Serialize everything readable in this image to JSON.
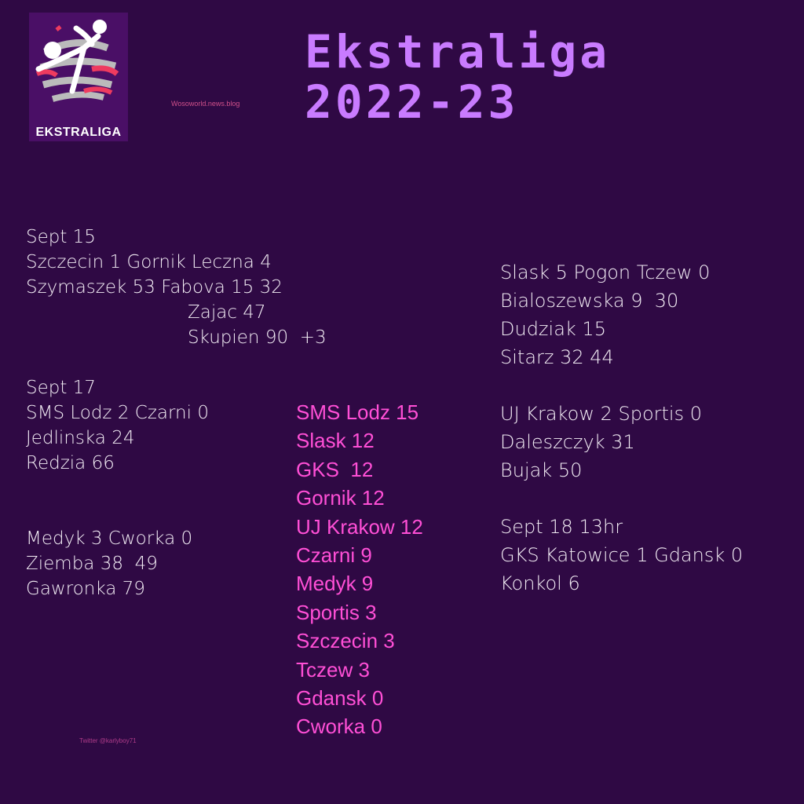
{
  "logo": {
    "text": "EKSTRALIGA"
  },
  "blog": "Wosoworld.news.blog",
  "title": [
    "Ekstraliga",
    "2022-23"
  ],
  "twitter": "Twitter @karlyboy71",
  "colors": {
    "background": "#2f0944",
    "title": "#c97bff",
    "standings": "#ff4fd6",
    "text": "#f2ecf4"
  },
  "left": {
    "sept15": {
      "date": "Sept 15",
      "match": "Szczecin 1 Gornik Leczna 4",
      "scorers": [
        "Szymaszek 53 Fabova 15 32",
        "Zajac 47",
        "Skupien 90  +3"
      ]
    },
    "sept17": {
      "date": "Sept 17",
      "match": "SMS Lodz 2 Czarni 0",
      "scorers": [
        "Jedlinska 24",
        "Redzia 66"
      ]
    },
    "medyk": {
      "match": "Medyk 3 Cworka 0",
      "scorers": [
        "Ziemba 38  49",
        "Gawronka 79"
      ]
    }
  },
  "right": {
    "slask": {
      "match": "Slask 5 Pogon Tczew 0",
      "scorers": [
        "Bialoszewska 9  30",
        "Dudziak 15",
        "Sitarz 32 44"
      ]
    },
    "uj": {
      "match": "UJ Krakow 2 Sportis 0",
      "scorers": [
        "Daleszczyk 31",
        "Bujak 50"
      ]
    },
    "sept18": {
      "date": "Sept 18 13hr",
      "match": "GKS Katowice 1 Gdansk 0",
      "scorers": [
        "Konkol 6"
      ]
    }
  },
  "standings": [
    "SMS Lodz 15",
    "Slask 12",
    "GKS  12",
    "Gornik 12",
    "UJ Krakow 12",
    "Czarni 9",
    "Medyk 9",
    "Sportis 3",
    "Szczecin 3",
    "Tczew 3",
    "Gdansk 0",
    "Cworka 0"
  ]
}
